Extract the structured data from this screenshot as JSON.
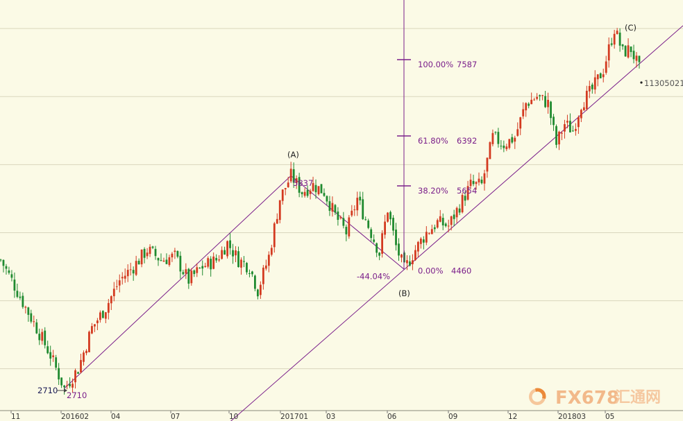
{
  "chart_data": {
    "type": "candlestick",
    "title": "",
    "xlabel": "",
    "ylabel": "",
    "x_tick_labels": [
      "11",
      "201602",
      "04",
      "07",
      "10",
      "201701",
      "03",
      "06",
      "09",
      "12",
      "201803",
      "05"
    ],
    "ylim": [
      2500,
      8100
    ],
    "y_gridlines": [
      3000,
      4000,
      5000,
      6000,
      7000,
      8000
    ],
    "grid": true,
    "price_path": [
      {
        "t": 0,
        "v": 4600
      },
      {
        "t": 4,
        "v": 4300
      },
      {
        "t": 9,
        "v": 3900
      },
      {
        "t": 13,
        "v": 3600
      },
      {
        "t": 18,
        "v": 3200
      },
      {
        "t": 23,
        "v": 2710
      },
      {
        "t": 28,
        "v": 3000
      },
      {
        "t": 33,
        "v": 3600
      },
      {
        "t": 38,
        "v": 3900
      },
      {
        "t": 43,
        "v": 4300
      },
      {
        "t": 48,
        "v": 4500
      },
      {
        "t": 53,
        "v": 4750
      },
      {
        "t": 58,
        "v": 4600
      },
      {
        "t": 63,
        "v": 4650
      },
      {
        "t": 68,
        "v": 4300
      },
      {
        "t": 73,
        "v": 4500
      },
      {
        "t": 78,
        "v": 4600
      },
      {
        "t": 82,
        "v": 4850
      },
      {
        "t": 86,
        "v": 4600
      },
      {
        "t": 90,
        "v": 4500
      },
      {
        "t": 93,
        "v": 4150
      },
      {
        "t": 97,
        "v": 4650
      },
      {
        "t": 101,
        "v": 5500
      },
      {
        "t": 105,
        "v": 5837
      },
      {
        "t": 109,
        "v": 5600
      },
      {
        "t": 113,
        "v": 5700
      },
      {
        "t": 117,
        "v": 5600
      },
      {
        "t": 121,
        "v": 5250
      },
      {
        "t": 125,
        "v": 5000
      },
      {
        "t": 129,
        "v": 5500
      },
      {
        "t": 133,
        "v": 5100
      },
      {
        "t": 137,
        "v": 4700
      },
      {
        "t": 140,
        "v": 5350
      },
      {
        "t": 143,
        "v": 4800
      },
      {
        "t": 146,
        "v": 4460
      },
      {
        "t": 150,
        "v": 4750
      },
      {
        "t": 154,
        "v": 5000
      },
      {
        "t": 158,
        "v": 5150
      },
      {
        "t": 162,
        "v": 5100
      },
      {
        "t": 166,
        "v": 5400
      },
      {
        "t": 170,
        "v": 5700
      },
      {
        "t": 174,
        "v": 5700
      },
      {
        "t": 178,
        "v": 6400
      },
      {
        "t": 182,
        "v": 6300
      },
      {
        "t": 186,
        "v": 6400
      },
      {
        "t": 190,
        "v": 6900
      },
      {
        "t": 194,
        "v": 7000
      },
      {
        "t": 198,
        "v": 6900
      },
      {
        "t": 201,
        "v": 6300
      },
      {
        "t": 204,
        "v": 6600
      },
      {
        "t": 207,
        "v": 6500
      },
      {
        "t": 210,
        "v": 6900
      },
      {
        "t": 214,
        "v": 7100
      },
      {
        "t": 218,
        "v": 7400
      },
      {
        "t": 222,
        "v": 8000
      },
      {
        "t": 225,
        "v": 7650
      },
      {
        "t": 228,
        "v": 7700
      },
      {
        "t": 231,
        "v": 7400
      }
    ],
    "last_value_label": "11305021",
    "elliott_waves": [
      {
        "label": "(A)",
        "value": 5837
      },
      {
        "label": "(B)",
        "value": 4460
      },
      {
        "label": "(C)",
        "value": 8000
      }
    ],
    "price_labels": [
      {
        "text": "2710",
        "value": 2710
      },
      {
        "text": "2710",
        "value": 2710
      },
      {
        "text": "5837",
        "value": 5837
      }
    ],
    "retracement_label": "-44.04%",
    "fibonacci": [
      {
        "pct": "100.00%",
        "value": "7587"
      },
      {
        "pct": "61.80%",
        "value": "6392"
      },
      {
        "pct": "38.20%",
        "value": "5654"
      },
      {
        "pct": "0.00%",
        "value": "4460"
      }
    ],
    "trendlines": [
      {
        "from": {
          "t": 23,
          "v": 2710
        },
        "to": {
          "t": 105,
          "v": 5837
        }
      },
      {
        "from": {
          "t": 105,
          "v": 5837
        },
        "to": {
          "t": 146,
          "v": 4460
        }
      },
      {
        "from": {
          "t": 146,
          "v": 4460
        },
        "to": {
          "t": 240,
          "v": 7800
        }
      }
    ],
    "colors": {
      "background": "#fbfae6",
      "up": "#d33a20",
      "down": "#1f8a2f",
      "lines": "#7a1e8a",
      "grid": "#d9d6bd"
    }
  },
  "watermark": {
    "brand": "FX678",
    "cn": "汇通网",
    "icon": "fx678-logo-icon"
  }
}
